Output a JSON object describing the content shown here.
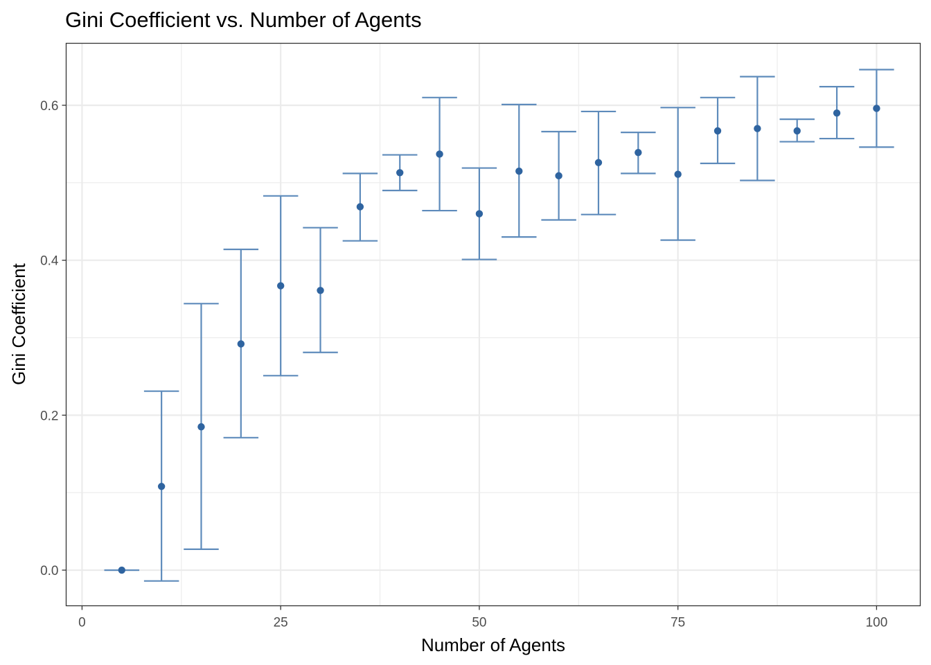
{
  "chart_data": {
    "type": "scatter",
    "title": "Gini Coefficient vs. Number of Agents",
    "xlabel": "Number of Agents",
    "ylabel": "Gini Coefficient",
    "xlim": [
      -2,
      105.5
    ],
    "ylim": [
      -0.046,
      0.68
    ],
    "x_ticks": [
      0,
      25,
      50,
      75,
      100
    ],
    "x_tick_labels": [
      "0",
      "25",
      "50",
      "75",
      "100"
    ],
    "y_ticks": [
      0.0,
      0.2,
      0.4,
      0.6
    ],
    "y_tick_labels": [
      "0.0",
      "0.2",
      "0.4",
      "0.6"
    ],
    "x_minor_ticks": [
      12.5,
      37.5,
      62.5,
      87.5
    ],
    "y_minor_ticks": [
      0.1,
      0.3,
      0.5
    ],
    "grid": true,
    "legend": "none",
    "error_bar_cap_width": 4.4,
    "colors": {
      "point": "#2f64a0",
      "error_bar": "#5e8bbb",
      "grid": "#ebebeb",
      "panel_border": "#333333",
      "tick_label": "#4d4d4d"
    },
    "series": [
      {
        "points": [
          {
            "x": 5,
            "y": 0.0,
            "ymin": 0.0,
            "ymax": 0.0
          },
          {
            "x": 10,
            "y": 0.108,
            "ymin": -0.014,
            "ymax": 0.231
          },
          {
            "x": 15,
            "y": 0.185,
            "ymin": 0.027,
            "ymax": 0.344
          },
          {
            "x": 20,
            "y": 0.292,
            "ymin": 0.171,
            "ymax": 0.414
          },
          {
            "x": 25,
            "y": 0.367,
            "ymin": 0.251,
            "ymax": 0.483
          },
          {
            "x": 30,
            "y": 0.361,
            "ymin": 0.281,
            "ymax": 0.442
          },
          {
            "x": 35,
            "y": 0.469,
            "ymin": 0.425,
            "ymax": 0.512
          },
          {
            "x": 40,
            "y": 0.513,
            "ymin": 0.49,
            "ymax": 0.536
          },
          {
            "x": 45,
            "y": 0.537,
            "ymin": 0.464,
            "ymax": 0.61
          },
          {
            "x": 50,
            "y": 0.46,
            "ymin": 0.401,
            "ymax": 0.519
          },
          {
            "x": 55,
            "y": 0.515,
            "ymin": 0.43,
            "ymax": 0.601
          },
          {
            "x": 60,
            "y": 0.509,
            "ymin": 0.452,
            "ymax": 0.566
          },
          {
            "x": 65,
            "y": 0.526,
            "ymin": 0.459,
            "ymax": 0.592
          },
          {
            "x": 70,
            "y": 0.539,
            "ymin": 0.512,
            "ymax": 0.565
          },
          {
            "x": 75,
            "y": 0.511,
            "ymin": 0.426,
            "ymax": 0.597
          },
          {
            "x": 80,
            "y": 0.567,
            "ymin": 0.525,
            "ymax": 0.61
          },
          {
            "x": 85,
            "y": 0.57,
            "ymin": 0.503,
            "ymax": 0.637
          },
          {
            "x": 90,
            "y": 0.567,
            "ymin": 0.553,
            "ymax": 0.582
          },
          {
            "x": 95,
            "y": 0.59,
            "ymin": 0.557,
            "ymax": 0.624
          },
          {
            "x": 100,
            "y": 0.596,
            "ymin": 0.546,
            "ymax": 0.646
          }
        ]
      }
    ]
  }
}
